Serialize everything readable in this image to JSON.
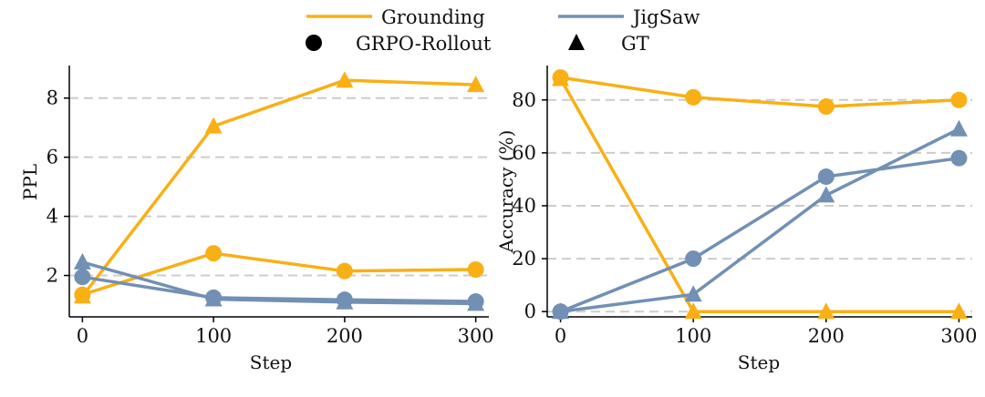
{
  "legend": {
    "series": [
      {
        "label": "Grounding",
        "color": "#F8B015"
      },
      {
        "label": "JigSaw",
        "color": "#7290B4"
      }
    ],
    "markers": [
      {
        "label": "GRPO-Rollout",
        "shape": "circle"
      },
      {
        "label": "GT",
        "shape": "triangle"
      }
    ]
  },
  "colors": {
    "grounding": "#F8B015",
    "jigsaw": "#7290B4",
    "grid": "#cccccc",
    "axis": "#000000"
  },
  "chart_data": [
    {
      "type": "line",
      "title": "",
      "xlabel": "Step",
      "ylabel": "PPL",
      "x": [
        0,
        100,
        200,
        300
      ],
      "xticks": [
        "0",
        "100",
        "200",
        "300"
      ],
      "yticks": [
        "2",
        "4",
        "6",
        "8"
      ],
      "ytick_values": [
        2,
        4,
        6,
        8
      ],
      "xlim": [
        -10,
        310
      ],
      "ylim": [
        0.6,
        9.1
      ],
      "grid": "horizontal-dashed",
      "series": [
        {
          "name": "Grounding GRPO-Rollout",
          "color": "grounding",
          "marker": "circle",
          "values": [
            1.35,
            2.75,
            2.15,
            2.2
          ]
        },
        {
          "name": "Grounding GT",
          "color": "grounding",
          "marker": "triangle",
          "values": [
            1.3,
            7.05,
            8.6,
            8.45
          ]
        },
        {
          "name": "JigSaw GRPO-Rollout",
          "color": "jigsaw",
          "marker": "circle",
          "values": [
            1.95,
            1.25,
            1.18,
            1.12
          ]
        },
        {
          "name": "JigSaw GT",
          "color": "jigsaw",
          "marker": "triangle",
          "values": [
            2.45,
            1.2,
            1.1,
            1.05
          ]
        }
      ]
    },
    {
      "type": "line",
      "title": "",
      "xlabel": "Step",
      "ylabel": "Accuracy (%)",
      "x": [
        0,
        100,
        200,
        300
      ],
      "xticks": [
        "0",
        "100",
        "200",
        "300"
      ],
      "yticks": [
        "0",
        "20",
        "40",
        "60",
        "80"
      ],
      "ytick_values": [
        0,
        20,
        40,
        60,
        80
      ],
      "xlim": [
        -10,
        310
      ],
      "ylim": [
        -2,
        93
      ],
      "grid": "horizontal-dashed",
      "series": [
        {
          "name": "Grounding GRPO-Rollout",
          "color": "grounding",
          "marker": "circle",
          "values": [
            88.5,
            81,
            77.5,
            80
          ]
        },
        {
          "name": "Grounding GT",
          "color": "grounding",
          "marker": "triangle",
          "values": [
            88,
            0,
            0,
            0
          ]
        },
        {
          "name": "JigSaw GRPO-Rollout",
          "color": "jigsaw",
          "marker": "circle",
          "values": [
            0,
            20,
            51,
            58
          ]
        },
        {
          "name": "JigSaw GT",
          "color": "jigsaw",
          "marker": "triangle",
          "values": [
            0,
            6.5,
            44,
            69
          ]
        }
      ]
    }
  ]
}
